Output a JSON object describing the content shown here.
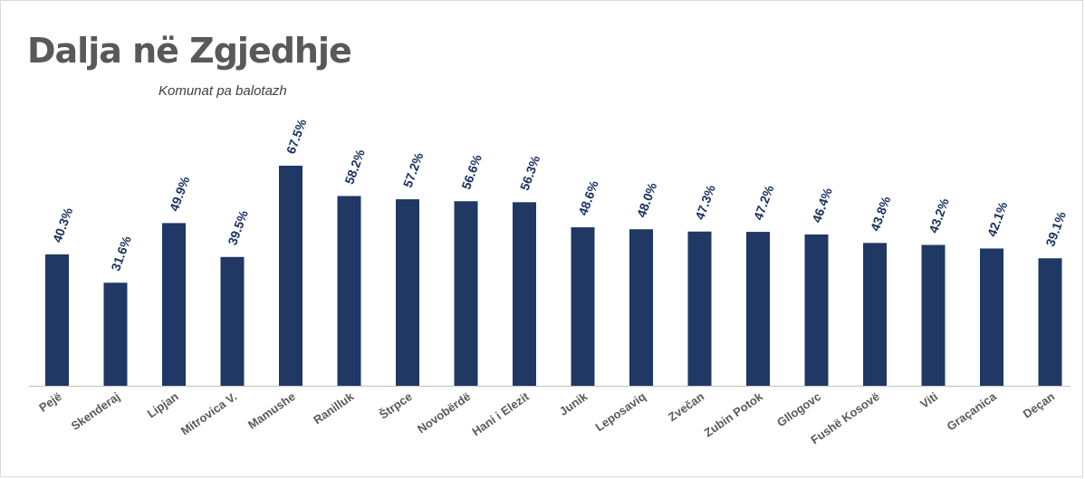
{
  "chart_data": {
    "type": "bar",
    "title": "Dalja në Zgjedhje",
    "subtitle": "Komunat pa balotazh",
    "categories": [
      "Pejë",
      "Skenderaj",
      "Lipjan",
      "Mitrovica V.",
      "Mamushe",
      "Ranilluk",
      "Štrpce",
      "Novobërdë",
      "Hani i Elezit",
      "Junik",
      "Leposaviq",
      "Zvečan",
      "Zubin Potok",
      "Gllogovc",
      "Fushë Kosovë",
      "Viti",
      "Graçanica",
      "Deçan"
    ],
    "values": [
      40.3,
      31.6,
      49.9,
      39.5,
      67.5,
      58.2,
      57.2,
      56.6,
      56.3,
      48.6,
      48.0,
      47.3,
      47.2,
      46.4,
      43.8,
      43.2,
      42.1,
      39.1
    ],
    "value_labels": [
      "40.3%",
      "31.6%",
      "49.9%",
      "39.5%",
      "67.5%",
      "58.2%",
      "57.2%",
      "56.6%",
      "56.3%",
      "48.6%",
      "48.0%",
      "47.3%",
      "47.2%",
      "46.4%",
      "43.8%",
      "43.2%",
      "42.1%",
      "39.1%"
    ],
    "bar_color": "#1f3864",
    "ylim": [
      0,
      70
    ],
    "grid": false,
    "legend": "none"
  }
}
